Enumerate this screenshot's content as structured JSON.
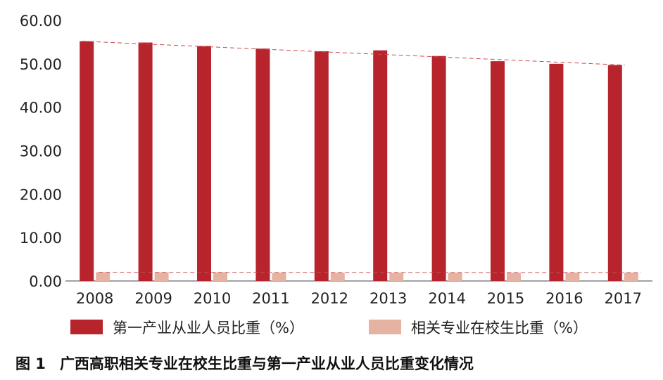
{
  "chart_data": {
    "type": "bar",
    "categories": [
      "2008",
      "2009",
      "2010",
      "2011",
      "2012",
      "2013",
      "2014",
      "2015",
      "2016",
      "2017"
    ],
    "series": [
      {
        "name": "第一产业从业人员比重（%）",
        "color": "#b8242c",
        "values": [
          55.2,
          54.9,
          54.1,
          53.5,
          52.9,
          53.1,
          51.8,
          50.6,
          50.0,
          49.7
        ]
      },
      {
        "name": "相关专业在校生比重（%）",
        "color": "#e6b3a3",
        "values": [
          2.0,
          2.0,
          2.0,
          1.9,
          1.9,
          1.9,
          1.9,
          1.9,
          1.9,
          1.9
        ]
      }
    ],
    "ylim": [
      0,
      60
    ],
    "yticks": [
      "0.00",
      "10.00",
      "20.00",
      "30.00",
      "40.00",
      "50.00",
      "60.00"
    ],
    "trendline_color": "#c94a52",
    "grid": false,
    "legend": "bottom"
  },
  "caption": {
    "number": "图 1",
    "text": "广西高职相关专业在校生比重与第一产业从业人员比重变化情况"
  }
}
